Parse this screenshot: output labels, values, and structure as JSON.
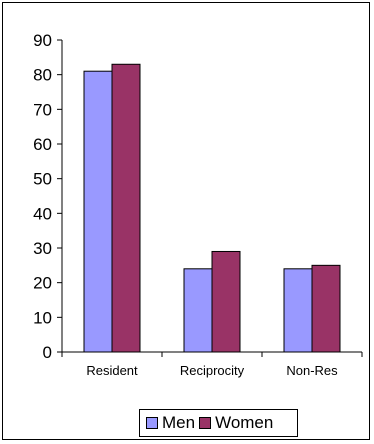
{
  "chart_data": {
    "type": "bar",
    "categories": [
      "Resident",
      "Reciprocity",
      "Non-Res"
    ],
    "series": [
      {
        "name": "Men",
        "values": [
          81,
          24,
          24
        ],
        "color": "#9999ff"
      },
      {
        "name": "Women",
        "values": [
          83,
          29,
          25
        ],
        "color": "#993366"
      }
    ],
    "title": "",
    "xlabel": "",
    "ylabel": "",
    "ylim": [
      0,
      90
    ],
    "yticks": [
      0,
      10,
      20,
      30,
      40,
      50,
      60,
      70,
      80,
      90
    ],
    "grid": false,
    "legend_position": "bottom"
  }
}
